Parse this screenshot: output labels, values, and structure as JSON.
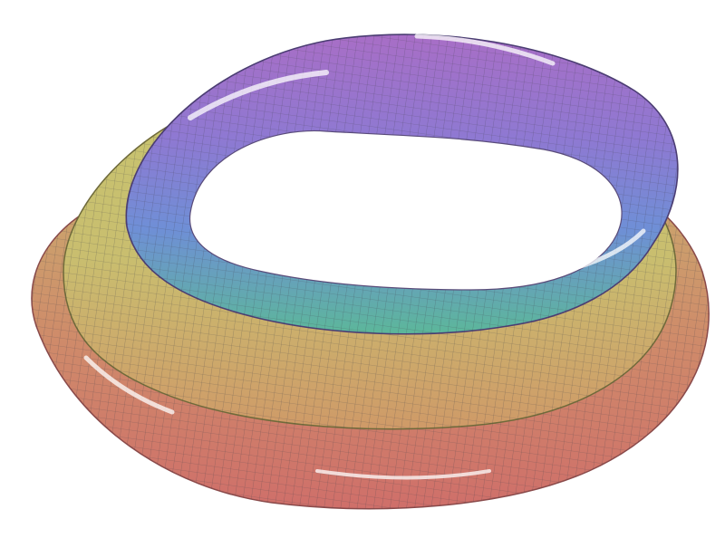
{
  "render": {
    "subject": "deformed-torus-mesh",
    "background": "#ffffff",
    "colormap": [
      "#cf6f6a",
      "#cc8a66",
      "#c9b06e",
      "#c7c46f",
      "#7fc48a",
      "#5cb79a",
      "#6f8fd6",
      "#8e79d2",
      "#a86ec6"
    ],
    "mesh_line_color": "#3f3f4a",
    "highlight_color": "#ffffff"
  }
}
